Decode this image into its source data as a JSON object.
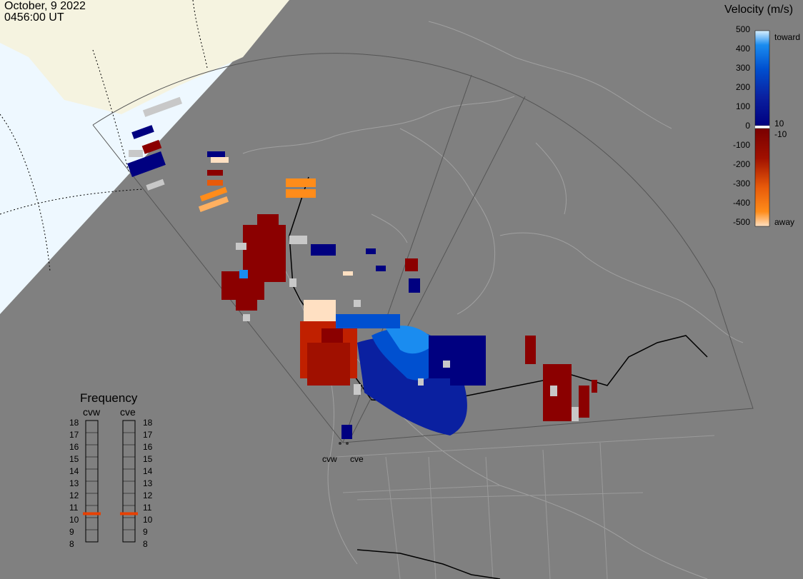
{
  "header": {
    "date": "October, 9 2022",
    "time": "0456:00 UT"
  },
  "colorbar": {
    "title": "Velocity (m/s)",
    "ticks": [
      "500",
      "400",
      "300",
      "200",
      "100",
      "0",
      "-100",
      "-200",
      "-300",
      "-400",
      "-500"
    ],
    "inner_labels": [
      "10",
      "-10"
    ],
    "toward_label": "toward",
    "away_label": "away",
    "colors": [
      "#ffe0c2",
      "#ff8c1a",
      "#e85a0a",
      "#c02000",
      "#8b0000",
      "#7a0000",
      "#ffffff",
      "#000080",
      "#0a20a0",
      "#0050d0",
      "#1a8cf0",
      "#8ccaf8",
      "#d8f0ff"
    ]
  },
  "frequency": {
    "title": "Frequency",
    "radars": [
      "cvw",
      "cve"
    ],
    "scale": [
      "18",
      "17",
      "16",
      "15",
      "14",
      "13",
      "12",
      "11",
      "10",
      "9",
      "8"
    ],
    "current_mhz": {
      "cvw": 10.5,
      "cve": 10.5
    },
    "marker_color": "#e84000"
  },
  "radar_sites": [
    "cvw",
    "cve"
  ]
}
